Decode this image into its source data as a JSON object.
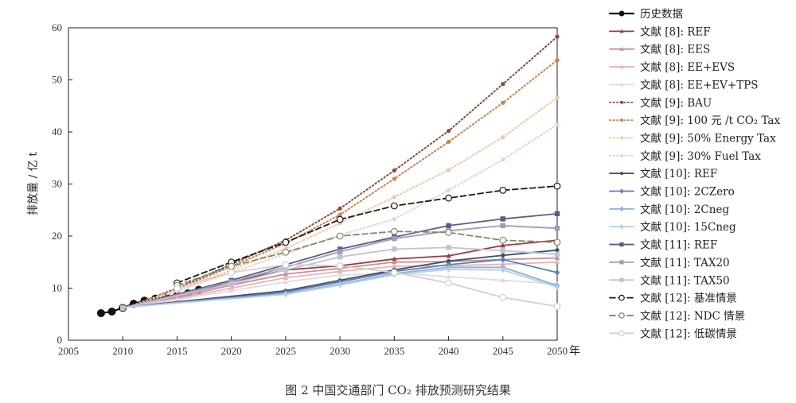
{
  "caption": "图 2  中国交通部门 CO₂ 排放预测研究结果",
  "chart_data": {
    "type": "line",
    "ylabel": "排放量 / 亿 t",
    "x_unit": "年",
    "xlim": [
      2005,
      2050
    ],
    "ylim": [
      0,
      60
    ],
    "xticks": [
      2005,
      2010,
      2015,
      2020,
      2025,
      2030,
      2035,
      2040,
      2045,
      2050
    ],
    "yticks": [
      0,
      10,
      20,
      30,
      40,
      50,
      60
    ],
    "grid": false,
    "legend_position": "right",
    "series": [
      {
        "name": "历史数据",
        "color": "#111111",
        "dash": "solid",
        "marker": "filled-large",
        "x": [
          2008,
          2009,
          2010,
          2011,
          2012,
          2013,
          2014,
          2015,
          2016,
          2017
        ],
        "y": [
          5.2,
          5.5,
          6.2,
          7.0,
          7.6,
          8.0,
          8.3,
          8.6,
          9.0,
          9.7
        ]
      },
      {
        "name": "文献 [8]: REF",
        "color": "#a0383c",
        "dash": "solid",
        "marker": "triangle",
        "x": [
          2010,
          2015,
          2020,
          2025,
          2030,
          2035,
          2040,
          2045,
          2050
        ],
        "y": [
          6.2,
          8.4,
          11.2,
          13.5,
          14.3,
          15.6,
          16.2,
          18.2,
          19.2
        ]
      },
      {
        "name": "文献 [8]: EES",
        "color": "#c98e92",
        "dash": "solid",
        "marker": "triangle",
        "x": [
          2010,
          2015,
          2020,
          2025,
          2030,
          2035,
          2040,
          2045,
          2050
        ],
        "y": [
          6.2,
          8.2,
          10.6,
          12.7,
          13.8,
          15.0,
          15.1,
          15.5,
          15.8
        ]
      },
      {
        "name": "文献 [8]: EE+EVS",
        "color": "#e3b3b6",
        "dash": "solid",
        "marker": "triangle",
        "x": [
          2010,
          2015,
          2020,
          2025,
          2030,
          2035,
          2040,
          2045,
          2050
        ],
        "y": [
          6.2,
          8.0,
          10.0,
          12.0,
          13.2,
          14.2,
          14.3,
          14.6,
          15.0
        ]
      },
      {
        "name": "文献 [8]: EE+EV+TPS",
        "color": "#e8d8d8",
        "dash": "solid",
        "marker": "triangle",
        "x": [
          2010,
          2015,
          2020,
          2025,
          2030,
          2035,
          2040,
          2045,
          2050
        ],
        "y": [
          6.2,
          7.8,
          9.5,
          11.2,
          12.5,
          12.9,
          12.2,
          11.5,
          10.8
        ]
      },
      {
        "name": "文献 [9]: BAU",
        "color": "#8b4a3c",
        "dash": "dotted",
        "marker": "dot",
        "x": [
          2010,
          2015,
          2020,
          2025,
          2030,
          2035,
          2040,
          2045,
          2050
        ],
        "y": [
          6.0,
          10.0,
          14.6,
          19.2,
          25.3,
          32.6,
          40.2,
          49.2,
          58.3
        ]
      },
      {
        "name": "文献 [9]: 100 元 /t CO₂ Tax",
        "color": "#d2804a",
        "dash": "dotted",
        "marker": "dot",
        "x": [
          2010,
          2015,
          2020,
          2025,
          2030,
          2035,
          2040,
          2045,
          2050
        ],
        "y": [
          6.0,
          9.8,
          14.2,
          18.6,
          24.1,
          31.0,
          38.1,
          45.6,
          53.8
        ]
      },
      {
        "name": "文献 [9]: 50% Energy Tax",
        "color": "#f0c8a8",
        "dash": "dotted",
        "marker": "dot",
        "x": [
          2010,
          2015,
          2020,
          2025,
          2030,
          2035,
          2040,
          2045,
          2050
        ],
        "y": [
          6.0,
          9.6,
          13.5,
          17.6,
          22.5,
          27.5,
          32.7,
          39.0,
          46.6
        ]
      },
      {
        "name": "文献 [9]: 30% Fuel Tax",
        "color": "#f2cfc4",
        "dash": "dotted",
        "marker": "dot",
        "x": [
          2010,
          2015,
          2020,
          2025,
          2030,
          2035,
          2040,
          2045,
          2050
        ],
        "y": [
          6.0,
          9.4,
          13.0,
          16.6,
          20.2,
          23.3,
          28.8,
          34.7,
          41.4
        ]
      },
      {
        "name": "文献 [10]: REF",
        "color": "#3b4f6e",
        "dash": "solid",
        "marker": "dot",
        "x": [
          2010,
          2025,
          2030,
          2035,
          2040,
          2045,
          2050
        ],
        "y": [
          6.3,
          9.5,
          11.5,
          13.5,
          15.2,
          16.3,
          17.3
        ]
      },
      {
        "name": "文献 [10]: 2CZero",
        "color": "#5e7fb0",
        "dash": "solid",
        "marker": "diamond",
        "x": [
          2010,
          2025,
          2030,
          2035,
          2040,
          2045,
          2050
        ],
        "y": [
          6.3,
          9.2,
          11.2,
          13.2,
          14.5,
          15.5,
          13.0
        ]
      },
      {
        "name": "文献 [10]: 2Cneg",
        "color": "#8fb0d8",
        "dash": "solid",
        "marker": "diamond",
        "x": [
          2010,
          2025,
          2030,
          2035,
          2040,
          2045,
          2050
        ],
        "y": [
          6.3,
          8.9,
          10.8,
          12.8,
          14.0,
          14.0,
          10.5
        ]
      },
      {
        "name": "文献 [10]: 15Cneg",
        "color": "#b5cfe6",
        "dash": "solid",
        "marker": "diamond",
        "x": [
          2010,
          2025,
          2030,
          2035,
          2040,
          2045,
          2050
        ],
        "y": [
          6.3,
          8.8,
          10.6,
          12.6,
          13.6,
          13.5,
          10.2
        ]
      },
      {
        "name": "文献 [11]: REF",
        "color": "#5b5b8a",
        "dash": "solid",
        "marker": "square",
        "x": [
          2010,
          2020,
          2025,
          2030,
          2035,
          2040,
          2045,
          2050
        ],
        "y": [
          6.2,
          11.5,
          14.5,
          17.5,
          19.8,
          22.0,
          23.3,
          24.3
        ]
      },
      {
        "name": "文献 [11]: TAX20",
        "color": "#9c9cbe",
        "dash": "solid",
        "marker": "square",
        "x": [
          2010,
          2020,
          2025,
          2030,
          2035,
          2040,
          2045,
          2050
        ],
        "y": [
          6.2,
          11.2,
          14.0,
          17.0,
          19.5,
          21.0,
          22.0,
          21.5
        ]
      },
      {
        "name": "文献 [11]: TAX50",
        "color": "#c2c2d2",
        "dash": "solid",
        "marker": "square",
        "x": [
          2010,
          2020,
          2025,
          2030,
          2035,
          2040,
          2045,
          2050
        ],
        "y": [
          6.2,
          10.8,
          13.5,
          16.0,
          17.5,
          17.8,
          17.2,
          16.5
        ]
      },
      {
        "name": "文献 [12]: 基准情景",
        "color": "#1a1a1a",
        "dash": "dashed",
        "marker": "open-circle",
        "x": [
          2015,
          2020,
          2025,
          2030,
          2035,
          2040,
          2045,
          2050
        ],
        "y": [
          11.0,
          15.0,
          18.8,
          23.2,
          25.8,
          27.3,
          28.8,
          29.6
        ]
      },
      {
        "name": "文献 [12]: NDC 情景",
        "color": "#7e8a6a",
        "dash": "dashed",
        "marker": "open-circle",
        "x": [
          2015,
          2020,
          2025,
          2030,
          2035,
          2040,
          2045,
          2050
        ],
        "y": [
          10.5,
          14.2,
          16.9,
          20.0,
          20.9,
          20.7,
          19.2,
          18.8
        ]
      },
      {
        "name": "文献 [12]: 低碳情景",
        "color": "#d0d0cc",
        "dash": "solid",
        "marker": "open-circle",
        "x": [
          2015,
          2020,
          2025,
          2030,
          2035,
          2040,
          2045,
          2050
        ],
        "y": [
          10.0,
          13.0,
          14.5,
          14.3,
          13.0,
          11.0,
          8.2,
          6.5
        ]
      }
    ]
  }
}
